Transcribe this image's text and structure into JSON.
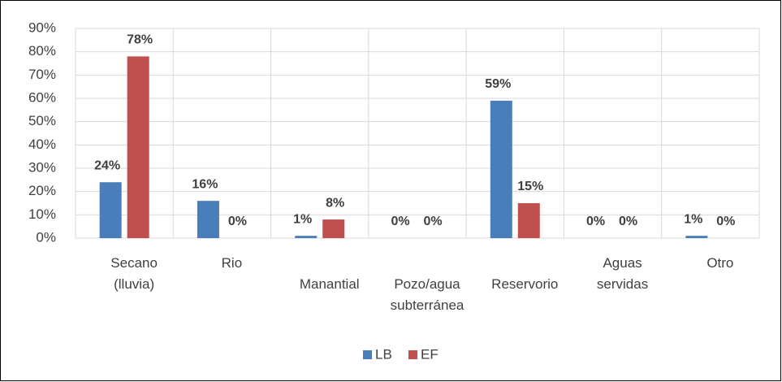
{
  "chart_data": {
    "type": "bar",
    "categories": [
      "Secano (lluvia)",
      "Rio",
      "Manantial",
      "Pozo/agua subterránea",
      "Reservorio",
      "Aguas servidas",
      "Otro"
    ],
    "series": [
      {
        "name": "LB",
        "color": "#4a7ebb",
        "values": [
          24,
          16,
          1,
          0,
          59,
          0,
          1
        ],
        "value_labels": [
          "24%",
          "16%",
          "1%",
          "0%",
          "59%",
          "0%",
          "1%"
        ]
      },
      {
        "name": "EF",
        "color": "#c0504d",
        "values": [
          78,
          0,
          8,
          0,
          15,
          0,
          0
        ],
        "value_labels": [
          "78%",
          "0%",
          "8%",
          "0%",
          "15%",
          "0%",
          "0%"
        ]
      }
    ],
    "ylim": [
      0,
      90
    ],
    "yticks": [
      {
        "value": 0,
        "label": "0%"
      },
      {
        "value": 10,
        "label": "10%"
      },
      {
        "value": 20,
        "label": "20%"
      },
      {
        "value": 30,
        "label": "30%"
      },
      {
        "value": 40,
        "label": "40%"
      },
      {
        "value": 50,
        "label": "50%"
      },
      {
        "value": 60,
        "label": "60%"
      },
      {
        "value": 70,
        "label": "70%"
      },
      {
        "value": 80,
        "label": "80%"
      },
      {
        "value": 90,
        "label": "90%"
      }
    ],
    "grid": true,
    "legend": "bottom"
  }
}
